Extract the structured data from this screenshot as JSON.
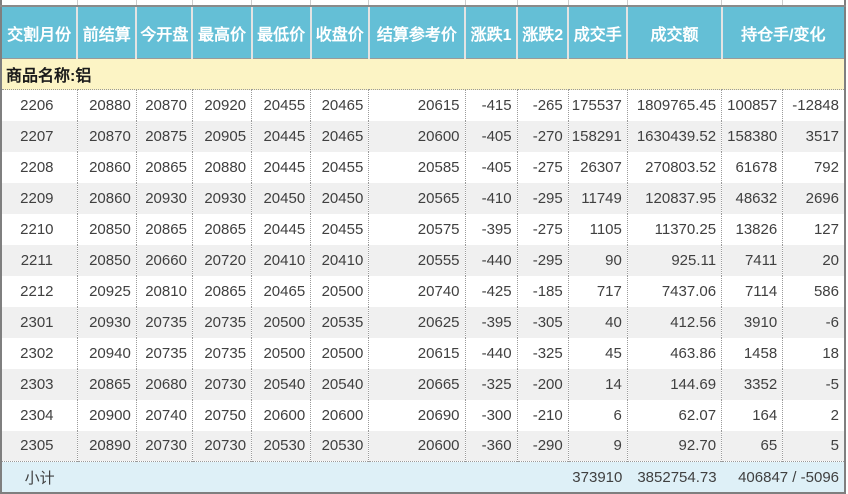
{
  "colors": {
    "header_bg": "#64bfd6",
    "header_text": "#ffffff",
    "group_row_bg": "#fcf4c5",
    "subtotal_bg": "#def0f7",
    "alt_row_bg": "#f0f0f0"
  },
  "table": {
    "columns": [
      "交割月份",
      "前结算",
      "今开盘",
      "最高价",
      "最低价",
      "收盘价",
      "结算参考价",
      "涨跌1",
      "涨跌2",
      "成交手",
      "成交额",
      "持仓手/变化"
    ],
    "group_label": "商品名称:铝",
    "rows": [
      [
        "2206",
        "20880",
        "20870",
        "20920",
        "20455",
        "20465",
        "20615",
        "-415",
        "-265",
        "175537",
        "1809765.45",
        "100857",
        "-12848"
      ],
      [
        "2207",
        "20870",
        "20875",
        "20905",
        "20445",
        "20465",
        "20600",
        "-405",
        "-270",
        "158291",
        "1630439.52",
        "158380",
        "3517"
      ],
      [
        "2208",
        "20860",
        "20865",
        "20880",
        "20445",
        "20455",
        "20585",
        "-405",
        "-275",
        "26307",
        "270803.52",
        "61678",
        "792"
      ],
      [
        "2209",
        "20860",
        "20930",
        "20930",
        "20450",
        "20450",
        "20565",
        "-410",
        "-295",
        "11749",
        "120837.95",
        "48632",
        "2696"
      ],
      [
        "2210",
        "20850",
        "20865",
        "20865",
        "20445",
        "20455",
        "20575",
        "-395",
        "-275",
        "1105",
        "11370.25",
        "13826",
        "127"
      ],
      [
        "2211",
        "20850",
        "20660",
        "20720",
        "20410",
        "20410",
        "20555",
        "-440",
        "-295",
        "90",
        "925.11",
        "7411",
        "20"
      ],
      [
        "2212",
        "20925",
        "20810",
        "20865",
        "20465",
        "20500",
        "20740",
        "-425",
        "-185",
        "717",
        "7437.06",
        "7114",
        "586"
      ],
      [
        "2301",
        "20930",
        "20735",
        "20735",
        "20500",
        "20535",
        "20625",
        "-395",
        "-305",
        "40",
        "412.56",
        "3910",
        "-6"
      ],
      [
        "2302",
        "20940",
        "20735",
        "20735",
        "20500",
        "20500",
        "20615",
        "-440",
        "-325",
        "45",
        "463.86",
        "1458",
        "18"
      ],
      [
        "2303",
        "20865",
        "20680",
        "20730",
        "20540",
        "20540",
        "20665",
        "-325",
        "-200",
        "14",
        "144.69",
        "3352",
        "-5"
      ],
      [
        "2304",
        "20900",
        "20740",
        "20750",
        "20600",
        "20600",
        "20690",
        "-300",
        "-210",
        "6",
        "62.07",
        "164",
        "2"
      ],
      [
        "2305",
        "20890",
        "20730",
        "20730",
        "20530",
        "20530",
        "20600",
        "-360",
        "-290",
        "9",
        "92.70",
        "65",
        "5"
      ]
    ],
    "subtotal": {
      "label": "小计",
      "volume": "373910",
      "turnover": "3852754.73",
      "position_change": "406847 / -5096"
    }
  }
}
